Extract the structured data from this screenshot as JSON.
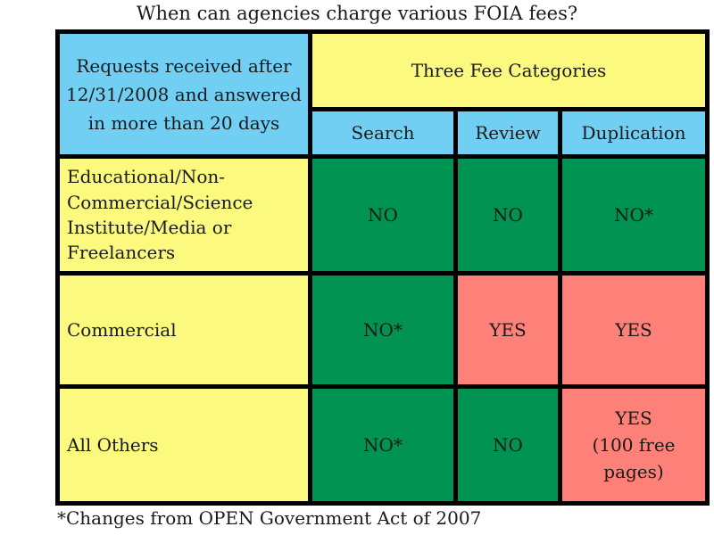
{
  "title": "When can agencies charge various FOIA fees?",
  "footnote": "*Changes from OPEN Government Act of 2007",
  "colors": {
    "header_blue": "#72CFF4",
    "label_yellow": "#FBF97E",
    "no_green": "#009351",
    "yes_pink": "#FD8179",
    "border_black": "#000000",
    "text": "#1A1A1A",
    "background": "#FFFFFF"
  },
  "table": {
    "corner_header": "Requests received after\n12/31/2008 and answered\nin more than 20 days",
    "group_header": "Three Fee Categories",
    "column_headers": [
      "Search",
      "Review",
      "Duplication"
    ],
    "rows": [
      {
        "label": "Educational/Non-\nCommercial/Science\nInstitute/Media or\nFreelancers",
        "cells": [
          {
            "text": "NO",
            "bg": "#009351"
          },
          {
            "text": "NO",
            "bg": "#009351"
          },
          {
            "text": "NO*",
            "bg": "#009351"
          }
        ]
      },
      {
        "label": "Commercial",
        "cells": [
          {
            "text": "NO*",
            "bg": "#009351"
          },
          {
            "text": "YES",
            "bg": "#FD8179"
          },
          {
            "text": "YES",
            "bg": "#FD8179"
          }
        ]
      },
      {
        "label": "All Others",
        "cells": [
          {
            "text": "NO*",
            "bg": "#009351"
          },
          {
            "text": "NO",
            "bg": "#009351"
          },
          {
            "text": "YES\n(100 free\npages)",
            "bg": "#FD8179"
          }
        ]
      }
    ]
  },
  "chart_data": {
    "type": "table",
    "title": "When can agencies charge various FOIA fees?",
    "corner_header": "Requests received after 12/31/2008 and answered in more than 20 days",
    "column_group_header": "Three Fee Categories",
    "columns": [
      "Search",
      "Review",
      "Duplication"
    ],
    "rows": [
      {
        "category": "Educational/Non-Commercial/Science Institute/Media or Freelancers",
        "values": [
          "NO",
          "NO",
          "NO*"
        ]
      },
      {
        "category": "Commercial",
        "values": [
          "NO*",
          "YES",
          "YES"
        ]
      },
      {
        "category": "All Others",
        "values": [
          "NO*",
          "NO",
          "YES (100 free pages)"
        ]
      }
    ],
    "footnote": "*Changes from OPEN Government Act of 2007",
    "color_coding": {
      "NO_cells": "#009351",
      "YES_cells": "#FD8179",
      "header_cells": "#72CFF4",
      "label_cells": "#FBF97E"
    }
  }
}
